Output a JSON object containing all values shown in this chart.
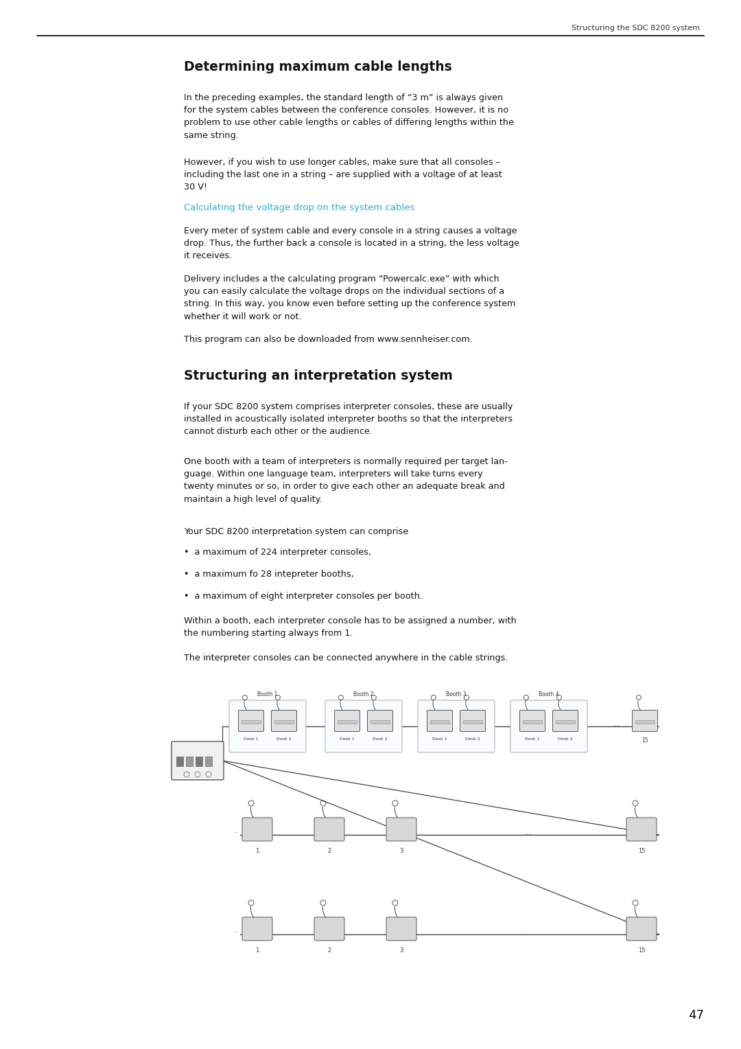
{
  "page_header": "Structuring the SDC 8200 system",
  "page_number": "47",
  "section1_title": "Determining maximum cable lengths",
  "section1_para1": "In the preceding examples, the standard length of “3 m” is always given\nfor the system cables between the conference consoles. However, it is no\nproblem to use other cable lengths or cables of differing lengths within the\nsame string.",
  "section1_para2": "However, if you wish to use longer cables, make sure that all consoles –\nincluding the last one in a string – are supplied with a voltage of at least\n30 V!",
  "subsection_title": "Calculating the voltage drop on the system cables",
  "section1_para3": "Every meter of system cable and every console in a string causes a voltage\ndrop. Thus, the further back a console is located in a string, the less voltage\nit receives.",
  "section1_para4": "Delivery includes a the calculating program “Powercalc.exe” with which\nyou can easily calculate the voltage drops on the individual sections of a\nstring. In this way, you know even before setting up the conference system\nwhether it will work or not.",
  "section1_para5": "This program can also be downloaded from www.sennheiser.com.",
  "section2_title": "Structuring an interpretation system",
  "section2_para1": "If your SDC 8200 system comprises interpreter consoles, these are usually\ninstalled in acoustically isolated interpreter booths so that the interpreters\ncannot disturb each other or the audience.",
  "section2_para2": "One booth with a team of interpreters is normally required per target lan-\nguage. Within one language team, interpreters will take turns every\ntwenty minutes or so, in order to give each other an adequate break and\nmaintain a high level of quality.",
  "section2_para3": "Your SDC 8200 interpretation system can comprise",
  "section2_bullets": [
    "a maximum of 224 interpreter consoles,",
    "a maximum fo 28 intepreter booths,",
    "a maximum of eight interpreter consoles per booth."
  ],
  "section2_para4": "Within a booth, each interpreter console has to be assigned a number, with\nthe numbering starting always from 1.",
  "section2_para5": "The interpreter consoles can be connected anywhere in the cable strings.",
  "bg_color": "#ffffff",
  "text_color": "#111111",
  "header_color": "#333333",
  "subsection_color": "#1ab0d8",
  "line_color": "#000000"
}
